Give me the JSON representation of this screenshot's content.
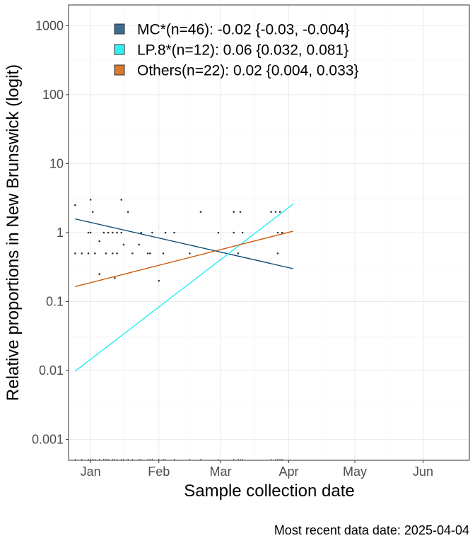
{
  "chart_data": {
    "type": "scatter",
    "ylabel": "Relative proportions in New Brunswick (logit)",
    "xlabel": "Sample collection date",
    "caption": "Most recent data date: 2025-04-04",
    "y_scale": "log",
    "ylim": [
      0.0005,
      2000
    ],
    "xlim": [
      "2024-12-22",
      "2025-06-22"
    ],
    "grid": true,
    "legend_position": "top-left",
    "y_ticks": [
      {
        "value": 0.001,
        "label": "0.001"
      },
      {
        "value": 0.01,
        "label": "0.01"
      },
      {
        "value": 0.1,
        "label": "0.1"
      },
      {
        "value": 1,
        "label": "1"
      },
      {
        "value": 10,
        "label": "10"
      },
      {
        "value": 100,
        "label": "100"
      },
      {
        "value": 1000,
        "label": "1000"
      }
    ],
    "x_ticks": [
      {
        "value": "2025-01-01",
        "label": "Jan"
      },
      {
        "value": "2025-02-01",
        "label": "Feb"
      },
      {
        "value": "2025-03-01",
        "label": "Mar"
      },
      {
        "value": "2025-04-01",
        "label": "Apr"
      },
      {
        "value": "2025-05-01",
        "label": "May"
      },
      {
        "value": "2025-06-01",
        "label": "Jun"
      }
    ],
    "series": [
      {
        "name": "MC*(n=46): -0.02 {-0.03, -0.004}",
        "color": "#0f4c6e",
        "legend_fill": "#3b6e8f",
        "fit": [
          {
            "x": "2024-12-25",
            "y": 1.58
          },
          {
            "x": "2025-04-03",
            "y": 0.3
          }
        ]
      },
      {
        "name": "LP.8*(n=12): 0.06 {0.032, 0.081}",
        "color": "#22eef5",
        "legend_fill": "#33f0f5",
        "fit": [
          {
            "x": "2024-12-25",
            "y": 0.0098
          },
          {
            "x": "2025-04-03",
            "y": 2.6
          }
        ]
      },
      {
        "name": "Others(n=22): 0.02 {0.004, 0.033}",
        "color": "#cc5a0a",
        "legend_fill": "#d9782e",
        "fit": [
          {
            "x": "2024-12-25",
            "y": 0.165
          },
          {
            "x": "2025-04-03",
            "y": 1.05
          }
        ]
      }
    ],
    "points": [
      {
        "x": "2024-12-25",
        "y": 2.5
      },
      {
        "x": "2024-12-25",
        "y": 0.5
      },
      {
        "x": "2024-12-28",
        "y": 0.5
      },
      {
        "x": "2024-12-31",
        "y": 1
      },
      {
        "x": "2024-12-31",
        "y": 0.5
      },
      {
        "x": "2025-01-01",
        "y": 3
      },
      {
        "x": "2025-01-01",
        "y": 1
      },
      {
        "x": "2025-01-02",
        "y": 2
      },
      {
        "x": "2025-01-03",
        "y": 0.5
      },
      {
        "x": "2025-01-05",
        "y": 0.75
      },
      {
        "x": "2025-01-05",
        "y": 0.25
      },
      {
        "x": "2025-01-07",
        "y": 1
      },
      {
        "x": "2025-01-08",
        "y": 0.5
      },
      {
        "x": "2025-01-09",
        "y": 1
      },
      {
        "x": "2025-01-11",
        "y": 1
      },
      {
        "x": "2025-01-11",
        "y": 0.5
      },
      {
        "x": "2025-01-12",
        "y": 0.22
      },
      {
        "x": "2025-01-13",
        "y": 1
      },
      {
        "x": "2025-01-13",
        "y": 0.5
      },
      {
        "x": "2025-01-15",
        "y": 3
      },
      {
        "x": "2025-01-15",
        "y": 1
      },
      {
        "x": "2025-01-16",
        "y": 0.67
      },
      {
        "x": "2025-01-18",
        "y": 2
      },
      {
        "x": "2025-01-20",
        "y": 0.5
      },
      {
        "x": "2025-01-23",
        "y": 0.67
      },
      {
        "x": "2025-01-24",
        "y": 1
      },
      {
        "x": "2025-01-27",
        "y": 0.5
      },
      {
        "x": "2025-01-28",
        "y": 0.5
      },
      {
        "x": "2025-01-29",
        "y": 1
      },
      {
        "x": "2025-02-01",
        "y": 0.2
      },
      {
        "x": "2025-02-03",
        "y": 0.5
      },
      {
        "x": "2025-02-04",
        "y": 1
      },
      {
        "x": "2025-02-08",
        "y": 1
      },
      {
        "x": "2025-02-15",
        "y": 0.5
      },
      {
        "x": "2025-02-20",
        "y": 2
      },
      {
        "x": "2025-02-28",
        "y": 1
      },
      {
        "x": "2025-03-07",
        "y": 2
      },
      {
        "x": "2025-03-07",
        "y": 1
      },
      {
        "x": "2025-03-09",
        "y": 0.5
      },
      {
        "x": "2025-03-10",
        "y": 2
      },
      {
        "x": "2025-03-11",
        "y": 1
      },
      {
        "x": "2025-03-24",
        "y": 2
      },
      {
        "x": "2025-03-26",
        "y": 2
      },
      {
        "x": "2025-03-27",
        "y": 0.5
      },
      {
        "x": "2025-03-27",
        "y": 1
      },
      {
        "x": "2025-03-28",
        "y": 2
      },
      {
        "x": "2025-03-29",
        "y": 1
      }
    ]
  }
}
